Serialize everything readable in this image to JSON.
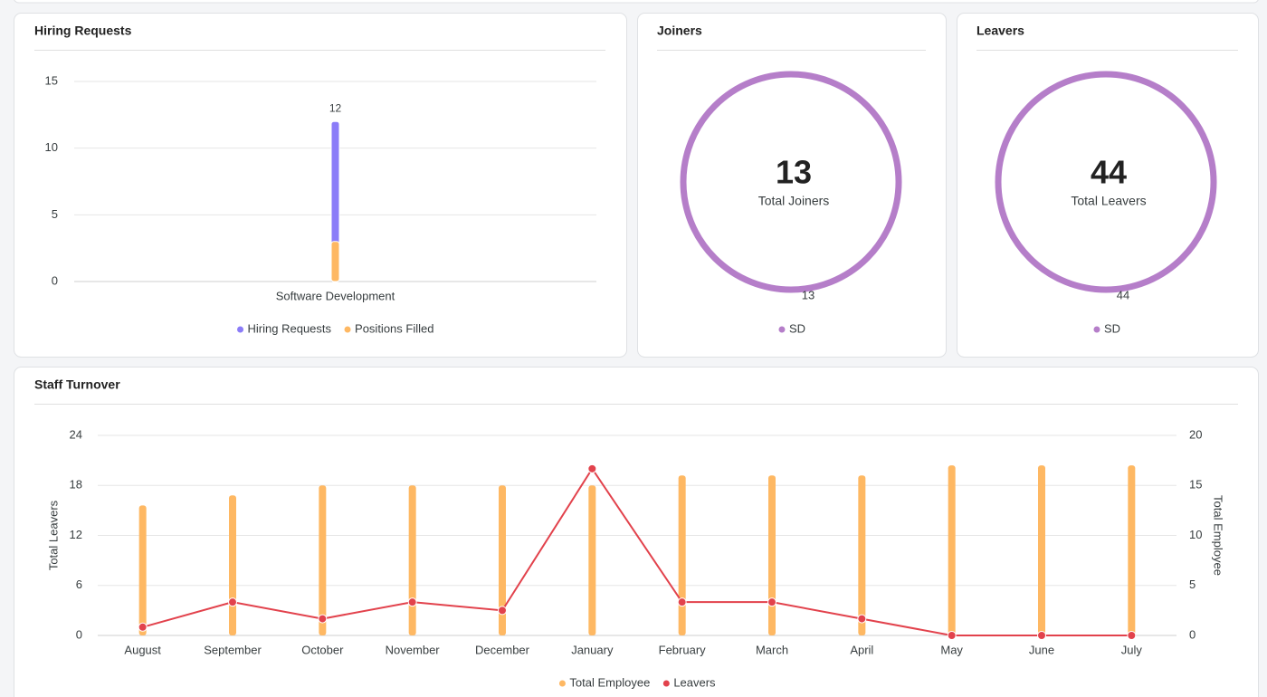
{
  "chart_data": [
    {
      "type": "bar",
      "title": "Hiring Requests",
      "categories": [
        "Software Development"
      ],
      "series": [
        {
          "name": "Hiring Requests",
          "color": "#8b7cf8",
          "values": [
            12
          ],
          "show_labels": true
        },
        {
          "name": "Positions Filled",
          "color": "#feb863",
          "values": [
            3
          ],
          "show_labels": false
        }
      ],
      "ylim": [
        0,
        15
      ],
      "yticks": [
        0,
        5,
        10,
        15
      ],
      "grid": true
    },
    {
      "type": "donut",
      "title": "Joiners",
      "categories": [
        "SD"
      ],
      "values": [
        13
      ],
      "colors": [
        "#b57ec9"
      ],
      "total": 13,
      "total_label": "Total Joiners"
    },
    {
      "type": "donut",
      "title": "Leavers",
      "categories": [
        "SD"
      ],
      "values": [
        44
      ],
      "colors": [
        "#b57ec9"
      ],
      "total": 44,
      "total_label": "Total Leavers"
    },
    {
      "type": "mixed",
      "title": "Staff Turnover",
      "categories": [
        "August",
        "September",
        "October",
        "November",
        "December",
        "January",
        "February",
        "March",
        "April",
        "May",
        "June",
        "July"
      ],
      "series": [
        {
          "name": "Total Employee",
          "type": "bar",
          "axis": "y2",
          "color": "#feb863",
          "values": [
            13,
            14,
            15,
            15,
            15,
            15,
            16,
            16,
            16,
            17,
            17,
            17
          ]
        },
        {
          "name": "Leavers",
          "type": "line",
          "color": "#e2424c",
          "values": [
            1,
            4,
            2,
            4,
            3,
            20,
            4,
            4,
            2,
            0,
            0,
            0
          ]
        }
      ],
      "ylim": [
        0,
        24
      ],
      "yticks": [
        0,
        6,
        12,
        18,
        24
      ],
      "ylabel": "Total Leavers",
      "y2lim": [
        0,
        20
      ],
      "y2ticks": [
        0,
        5,
        10,
        15,
        20
      ],
      "y2label": "Total Employee",
      "grid": true
    }
  ]
}
